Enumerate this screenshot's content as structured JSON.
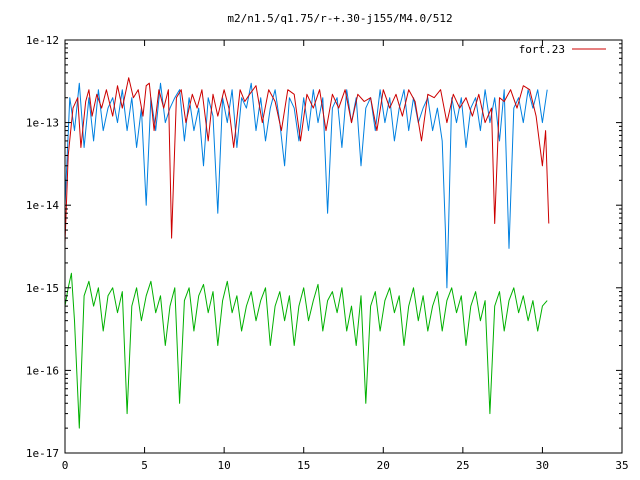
{
  "chart_data": {
    "type": "line",
    "title": "m2/n1.5/q1.75/r-+.30-j155/M4.0/512",
    "xlabel": "",
    "ylabel": "",
    "xlim": [
      0,
      35
    ],
    "ylim": [
      1e-17,
      1e-12
    ],
    "yscale": "log",
    "grid": false,
    "legend_position": "top-right",
    "x_ticks": [
      0,
      5,
      10,
      15,
      20,
      25,
      30,
      35
    ],
    "x_tick_labels": [
      "0",
      "5",
      "10",
      "15",
      "20",
      "25",
      "30",
      "35"
    ],
    "y_ticks": [
      1e-17,
      1e-16,
      1e-15,
      1e-14,
      1e-13,
      1e-12
    ],
    "y_tick_labels": [
      "1e-17",
      "1e-16",
      "1e-15",
      "1e-14",
      "1e-13",
      "1e-12"
    ],
    "series": [
      {
        "name": "fort.23",
        "color": "#cc0000",
        "x": [
          0.0,
          0.2,
          0.5,
          0.8,
          1.0,
          1.3,
          1.5,
          1.7,
          2.0,
          2.3,
          2.6,
          3.0,
          3.3,
          3.6,
          4.0,
          4.3,
          4.6,
          4.9,
          5.1,
          5.3,
          5.6,
          5.9,
          6.2,
          6.5,
          6.7,
          7.0,
          7.3,
          7.6,
          8.0,
          8.3,
          8.6,
          9.0,
          9.3,
          9.6,
          10.0,
          10.3,
          10.6,
          11.0,
          11.3,
          11.6,
          12.0,
          12.4,
          12.8,
          13.2,
          13.6,
          14.0,
          14.4,
          14.8,
          15.2,
          15.6,
          16.0,
          16.4,
          16.8,
          17.2,
          17.6,
          18.0,
          18.4,
          18.8,
          19.2,
          19.6,
          20.0,
          20.4,
          20.8,
          21.2,
          21.6,
          22.0,
          22.4,
          22.8,
          23.2,
          23.6,
          24.0,
          24.4,
          24.8,
          25.2,
          25.6,
          26.0,
          26.4,
          26.8,
          27.0,
          27.3,
          27.6,
          28.0,
          28.4,
          28.8,
          29.2,
          29.6,
          30.0,
          30.2,
          30.4
        ],
        "y": [
          3.5e-15,
          4e-14,
          1.5e-13,
          2e-13,
          5e-14,
          1.8e-13,
          2.5e-13,
          1.2e-13,
          2.2e-13,
          1.5e-13,
          2.5e-13,
          1.2e-13,
          2.8e-13,
          1.5e-13,
          3.5e-13,
          2e-13,
          2.5e-13,
          1.2e-13,
          2.8e-13,
          3e-13,
          8e-14,
          2.5e-13,
          1.5e-13,
          2.5e-13,
          4e-15,
          2e-13,
          2.5e-13,
          1e-13,
          2.2e-13,
          1.5e-13,
          2.5e-13,
          6e-14,
          2.2e-13,
          1.2e-13,
          2.5e-13,
          1.5e-13,
          5e-14,
          2.5e-13,
          1.8e-13,
          2.2e-13,
          2.8e-13,
          1e-13,
          2.5e-13,
          1.8e-13,
          8e-14,
          2.5e-13,
          2.2e-13,
          6e-14,
          2.2e-13,
          1.5e-13,
          2.5e-13,
          8e-14,
          2.2e-13,
          1.5e-13,
          2.5e-13,
          1e-13,
          2.2e-13,
          1.8e-13,
          2e-13,
          8e-14,
          2.5e-13,
          1.5e-13,
          2.2e-13,
          1.2e-13,
          2.5e-13,
          1.8e-13,
          6e-14,
          2.2e-13,
          2e-13,
          2.5e-13,
          1e-13,
          2.2e-13,
          1.5e-13,
          2e-13,
          1.2e-13,
          2.2e-13,
          1e-13,
          1.5e-13,
          6e-15,
          2e-13,
          1.8e-13,
          2.5e-13,
          1.5e-13,
          2.8e-13,
          2.5e-13,
          1.2e-13,
          3e-14,
          8e-14,
          6e-15
        ]
      },
      {
        "color": "#0080e0",
        "x": [
          0.0,
          0.3,
          0.6,
          0.9,
          1.2,
          1.5,
          1.8,
          2.1,
          2.4,
          2.7,
          3.0,
          3.3,
          3.6,
          3.9,
          4.2,
          4.5,
          4.8,
          5.1,
          5.4,
          5.7,
          6.0,
          6.3,
          6.6,
          6.9,
          7.2,
          7.5,
          7.8,
          8.1,
          8.4,
          8.7,
          9.0,
          9.3,
          9.6,
          9.9,
          10.2,
          10.5,
          10.8,
          11.1,
          11.4,
          11.7,
          12.0,
          12.3,
          12.6,
          12.9,
          13.2,
          13.5,
          13.8,
          14.1,
          14.4,
          14.7,
          15.0,
          15.3,
          15.6,
          15.9,
          16.2,
          16.5,
          16.8,
          17.1,
          17.4,
          17.7,
          18.0,
          18.3,
          18.6,
          18.9,
          19.2,
          19.5,
          19.8,
          20.1,
          20.4,
          20.7,
          21.0,
          21.3,
          21.6,
          21.9,
          22.2,
          22.5,
          22.8,
          23.1,
          23.4,
          23.7,
          23.9,
          24.0,
          24.1,
          24.3,
          24.6,
          24.9,
          25.2,
          25.5,
          25.8,
          26.1,
          26.4,
          26.7,
          27.0,
          27.3,
          27.6,
          27.9,
          28.2,
          28.5,
          28.8,
          29.1,
          29.4,
          29.7,
          30.0,
          30.3
        ],
        "y": [
          1e-14,
          2e-13,
          8e-14,
          3e-13,
          5e-14,
          2e-13,
          6e-14,
          2.5e-13,
          8e-14,
          1.5e-13,
          2e-13,
          1e-13,
          2.5e-13,
          8e-14,
          2e-13,
          5e-14,
          1.5e-13,
          1e-14,
          2e-13,
          8e-14,
          3e-13,
          1e-13,
          1.5e-13,
          2e-13,
          2.5e-13,
          6e-14,
          2e-13,
          8e-14,
          1.5e-13,
          3e-14,
          2e-13,
          1.2e-13,
          8e-15,
          2e-13,
          1e-13,
          2.5e-13,
          5e-14,
          2e-13,
          1.5e-13,
          3e-13,
          8e-14,
          2e-13,
          6e-14,
          1.5e-13,
          2.5e-13,
          1e-13,
          3e-14,
          2e-13,
          1.5e-13,
          6e-14,
          2e-13,
          8e-14,
          2.5e-13,
          1e-13,
          2e-13,
          8e-15,
          1.5e-13,
          2e-13,
          5e-14,
          2.5e-13,
          1e-13,
          2e-13,
          3e-14,
          1.5e-13,
          2e-13,
          8e-14,
          2.5e-13,
          1e-13,
          2e-13,
          6e-14,
          1.5e-13,
          2.5e-13,
          8e-14,
          2e-13,
          1e-13,
          1.5e-13,
          2e-13,
          8e-14,
          1.5e-13,
          6e-14,
          5e-15,
          1e-15,
          5e-15,
          2e-13,
          1e-13,
          2e-13,
          5e-14,
          1.5e-13,
          2e-13,
          8e-14,
          2.5e-13,
          1e-13,
          2e-13,
          6e-14,
          2.5e-13,
          3e-15,
          1.5e-13,
          2e-13,
          1e-13,
          2.5e-13,
          1.5e-13,
          2.5e-13,
          1e-13,
          2.5e-13
        ]
      },
      {
        "color": "#00b000",
        "x": [
          0.0,
          0.2,
          0.4,
          0.6,
          0.9,
          1.2,
          1.5,
          1.8,
          2.1,
          2.4,
          2.7,
          3.0,
          3.3,
          3.6,
          3.9,
          4.2,
          4.5,
          4.8,
          5.1,
          5.4,
          5.7,
          6.0,
          6.3,
          6.6,
          6.9,
          7.2,
          7.5,
          7.8,
          8.1,
          8.4,
          8.7,
          9.0,
          9.3,
          9.6,
          9.9,
          10.2,
          10.5,
          10.8,
          11.1,
          11.4,
          11.7,
          12.0,
          12.3,
          12.6,
          12.9,
          13.2,
          13.5,
          13.8,
          14.1,
          14.4,
          14.7,
          15.0,
          15.3,
          15.6,
          15.9,
          16.2,
          16.5,
          16.8,
          17.1,
          17.4,
          17.7,
          18.0,
          18.3,
          18.6,
          18.9,
          19.2,
          19.5,
          19.8,
          20.1,
          20.4,
          20.7,
          21.0,
          21.3,
          21.6,
          21.9,
          22.2,
          22.5,
          22.8,
          23.1,
          23.4,
          23.7,
          24.0,
          24.3,
          24.6,
          24.9,
          25.2,
          25.5,
          25.8,
          26.1,
          26.4,
          26.7,
          27.0,
          27.3,
          27.6,
          27.9,
          28.2,
          28.5,
          28.8,
          29.1,
          29.4,
          29.7,
          30.0,
          30.3
        ],
        "y": [
          6e-16,
          1e-15,
          1.5e-15,
          4e-16,
          2e-17,
          8e-16,
          1.2e-15,
          6e-16,
          1e-15,
          3e-16,
          8e-16,
          1e-15,
          5e-16,
          9e-16,
          3e-17,
          6e-16,
          1e-15,
          4e-16,
          8e-16,
          1.2e-15,
          5e-16,
          8e-16,
          2e-16,
          6e-16,
          1e-15,
          4e-17,
          7e-16,
          1e-15,
          3e-16,
          8e-16,
          1.1e-15,
          5e-16,
          9e-16,
          2e-16,
          7e-16,
          1.2e-15,
          5e-16,
          8e-16,
          3e-16,
          6e-16,
          9e-16,
          4e-16,
          7e-16,
          1e-15,
          2e-16,
          6e-16,
          9e-16,
          4e-16,
          8e-16,
          2e-16,
          6e-16,
          1e-15,
          4e-16,
          7e-16,
          1.1e-15,
          3e-16,
          7e-16,
          9e-16,
          5e-16,
          1e-15,
          3e-16,
          6e-16,
          2e-16,
          8e-16,
          4e-17,
          6e-16,
          9e-16,
          3e-16,
          7e-16,
          1e-15,
          5e-16,
          8e-16,
          2e-16,
          6e-16,
          1e-15,
          4e-16,
          8e-16,
          3e-16,
          6e-16,
          9e-16,
          3e-16,
          7e-16,
          1e-15,
          5e-16,
          8e-16,
          2e-16,
          6e-16,
          9e-16,
          4e-16,
          7e-16,
          3e-17,
          6e-16,
          9e-16,
          3e-16,
          7e-16,
          1e-15,
          5e-16,
          8e-16,
          4e-16,
          7e-16,
          3e-16,
          6e-16,
          7e-16
        ]
      }
    ]
  }
}
